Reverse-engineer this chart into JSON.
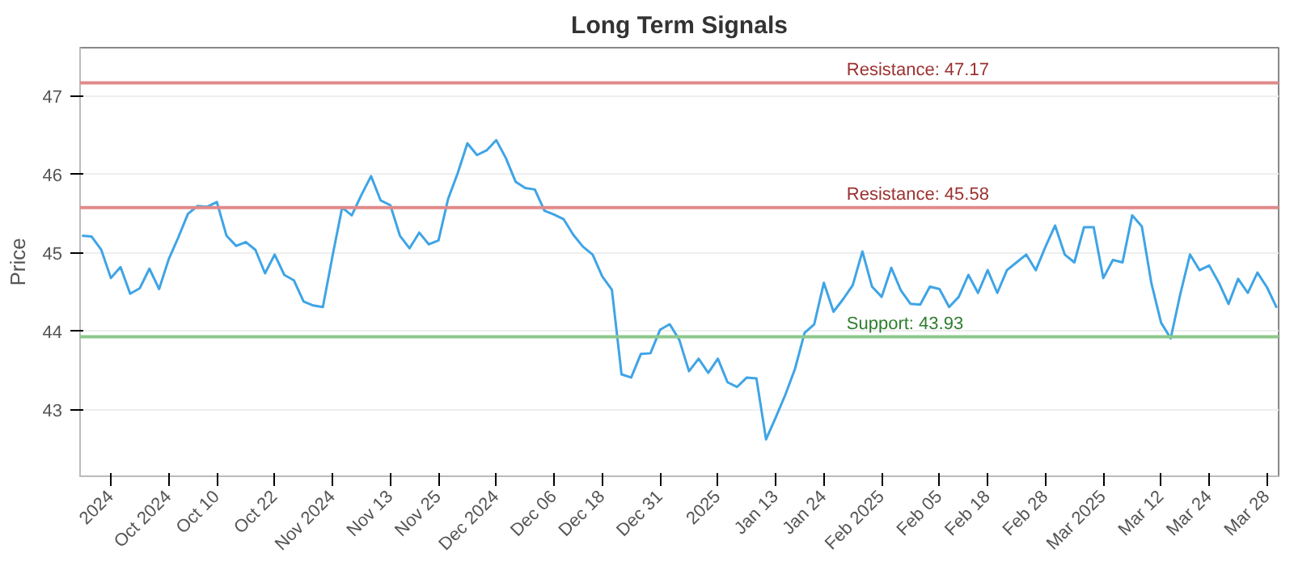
{
  "chart_data": {
    "type": "line",
    "title": "Long Term Signals",
    "ylabel": "Price",
    "categories": [
      null,
      null,
      null,
      "2024",
      null,
      null,
      null,
      null,
      null,
      "Oct 2024",
      null,
      null,
      null,
      null,
      "Oct 10",
      null,
      null,
      null,
      null,
      null,
      "Oct 22",
      null,
      null,
      null,
      null,
      null,
      "Nov 2024",
      null,
      null,
      null,
      null,
      null,
      "Nov 13",
      null,
      null,
      null,
      null,
      "Nov 25",
      null,
      null,
      null,
      null,
      null,
      "Dec 2024",
      null,
      null,
      null,
      null,
      null,
      "Dec 06",
      null,
      null,
      null,
      null,
      "Dec 18",
      null,
      null,
      null,
      null,
      null,
      "Dec 31",
      null,
      null,
      null,
      null,
      null,
      "2025",
      null,
      null,
      null,
      null,
      null,
      "Jan 13",
      null,
      null,
      null,
      null,
      "Jan 24",
      null,
      null,
      null,
      null,
      null,
      "Feb 2025",
      null,
      null,
      null,
      null,
      null,
      "Feb 05",
      null,
      null,
      null,
      null,
      "Feb 18",
      null,
      null,
      null,
      null,
      null,
      "Feb 28",
      null,
      null,
      null,
      null,
      null,
      "Mar 2025",
      null,
      null,
      null,
      null,
      null,
      "Mar 12",
      null,
      null,
      null,
      null,
      "Mar 24",
      null,
      null,
      null,
      null,
      null,
      "Mar 28",
      null
    ],
    "series": [
      {
        "color": "#3fa4e6",
        "values": [
          45.22,
          45.21,
          45.04,
          44.68,
          44.82,
          44.48,
          44.55,
          44.8,
          44.54,
          44.92,
          45.2,
          45.5,
          45.6,
          45.59,
          45.65,
          45.22,
          45.09,
          45.14,
          45.04,
          44.74,
          44.98,
          44.72,
          44.65,
          44.38,
          44.33,
          44.31,
          44.96,
          45.58,
          45.48,
          45.74,
          45.98,
          45.67,
          45.61,
          45.22,
          45.06,
          45.26,
          45.11,
          45.16,
          45.69,
          46.02,
          46.4,
          46.25,
          46.31,
          46.44,
          46.21,
          45.91,
          45.83,
          45.81,
          45.54,
          45.49,
          45.43,
          45.23,
          45.08,
          44.98,
          44.7,
          44.53,
          43.45,
          43.41,
          43.71,
          43.72,
          44.02,
          44.09,
          43.89,
          43.49,
          43.65,
          43.47,
          43.65,
          43.35,
          43.29,
          43.41,
          43.4,
          42.62,
          42.9,
          43.19,
          43.52,
          43.98,
          44.09,
          44.62,
          44.25,
          44.41,
          44.59,
          45.02,
          44.57,
          44.44,
          44.81,
          44.52,
          44.35,
          44.34,
          44.57,
          44.54,
          44.31,
          44.44,
          44.72,
          44.49,
          44.78,
          44.49,
          44.78,
          44.88,
          44.98,
          44.78,
          45.08,
          45.35,
          44.98,
          44.88,
          45.33,
          45.33,
          44.68,
          44.91,
          44.88,
          45.48,
          45.34,
          44.61,
          44.11,
          43.91,
          44.48,
          44.98,
          44.78,
          44.84,
          44.62,
          44.35,
          44.67,
          44.49,
          44.75,
          44.56,
          44.3
        ]
      }
    ],
    "ylim": [
      42.15,
      47.62
    ],
    "yticks": [
      43,
      44,
      45,
      46,
      47
    ],
    "grid": "y",
    "marker": "none",
    "line_style": "solid",
    "ref_lines": [
      {
        "axis": "y",
        "value": 47.17,
        "label": "Resistance: 47.17",
        "color": "#e08a8a"
      },
      {
        "axis": "y",
        "value": 45.58,
        "label": "Resistance: 45.58",
        "color": "#e08a8a"
      },
      {
        "axis": "y",
        "value": 43.93,
        "label": "Support: 43.93",
        "color": "#8cc98c"
      }
    ]
  }
}
